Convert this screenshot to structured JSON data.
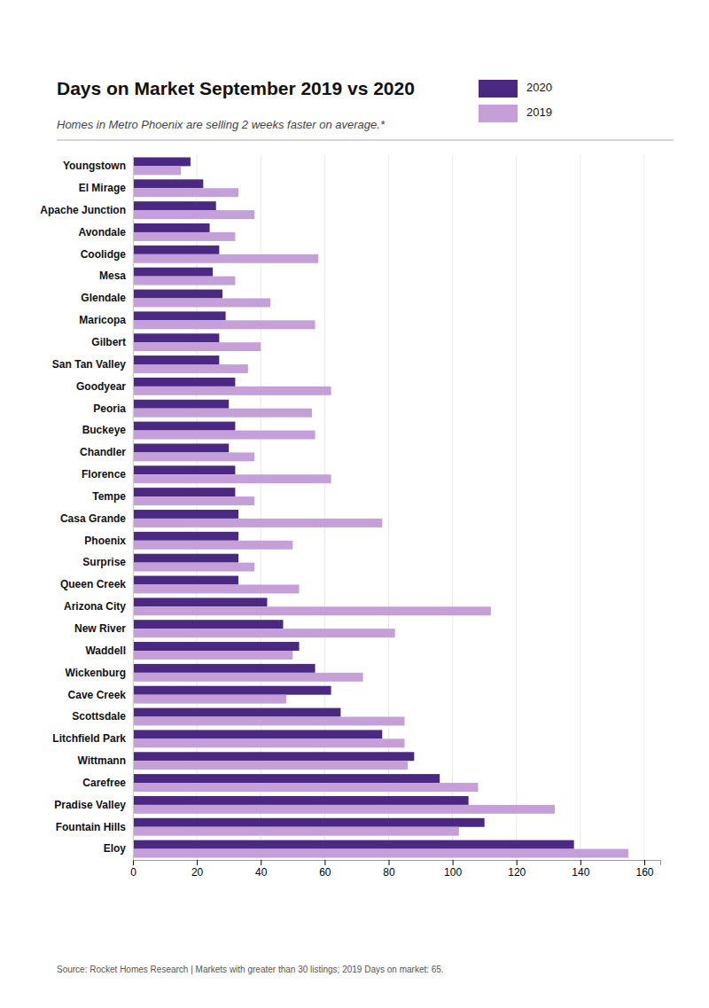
{
  "chart_data": {
    "type": "bar",
    "orientation": "horizontal",
    "title": "Days on Market September 2019 vs 2020",
    "subtitle": "Homes in Metro Phoenix are selling 2 weeks faster on average.*",
    "source": "Source: Rocket Homes Research | Markets with greater than 30 listings; 2019 Days on market: 65.",
    "categories": [
      "Youngstown",
      "El Mirage",
      "Apache Junction",
      "Avondale",
      "Coolidge",
      "Mesa",
      "Glendale",
      "Maricopa",
      "Gilbert",
      "San Tan Valley",
      "Goodyear",
      "Peoria",
      "Buckeye",
      "Chandler",
      "Florence",
      "Tempe",
      "Casa Grande",
      "Phoenix",
      "Surprise",
      "Queen Creek",
      "Arizona City",
      "New River",
      "Waddell",
      "Wickenburg",
      "Cave Creek",
      "Scottsdale",
      "Litchfield Park",
      "Wittmann",
      "Carefree",
      "Pradise Valley",
      "Fountain Hills",
      "Eloy"
    ],
    "series": [
      {
        "name": "2020",
        "color": "#4B2882",
        "values": [
          18,
          22,
          26,
          24,
          27,
          25,
          28,
          29,
          27,
          27,
          32,
          30,
          32,
          30,
          32,
          32,
          33,
          33,
          33,
          33,
          42,
          47,
          52,
          57,
          62,
          65,
          78,
          88,
          96,
          105,
          110,
          138
        ]
      },
      {
        "name": "2019",
        "color": "#C49FD8",
        "values": [
          15,
          33,
          38,
          32,
          58,
          32,
          43,
          57,
          40,
          36,
          62,
          56,
          57,
          38,
          62,
          38,
          78,
          50,
          38,
          52,
          112,
          82,
          50,
          72,
          48,
          85,
          85,
          86,
          108,
          132,
          102,
          155
        ]
      }
    ],
    "xlim": [
      0,
      165
    ],
    "xticks": [
      0,
      20,
      40,
      60,
      80,
      100,
      120,
      140,
      160
    ],
    "grid": true,
    "legend": "upper right"
  }
}
